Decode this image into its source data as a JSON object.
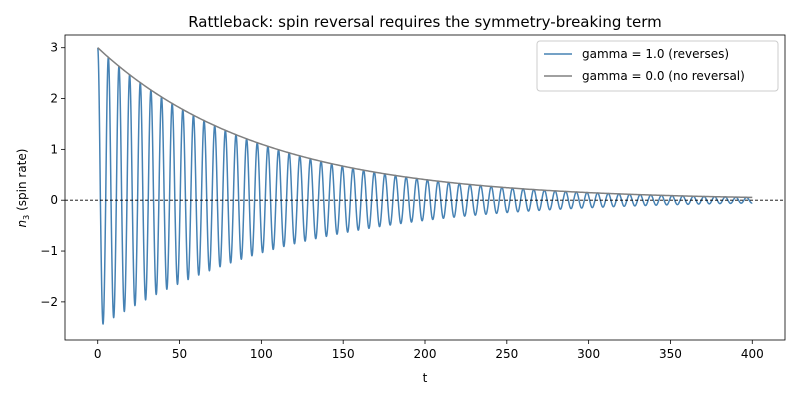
{
  "chart_data": {
    "type": "line",
    "title": "Rattleback: spin reversal requires the symmetry-breaking term",
    "xlabel": "t",
    "ylabel_main": "n",
    "ylabel_sub": "3",
    "ylabel_rest": " (spin rate)",
    "xlim": [
      -20,
      420
    ],
    "ylim": [
      -2.75,
      3.25
    ],
    "x_ticks": [
      0,
      50,
      100,
      150,
      200,
      250,
      300,
      350,
      400
    ],
    "x_tick_labels": [
      "0",
      "50",
      "100",
      "150",
      "200",
      "250",
      "300",
      "350",
      "400"
    ],
    "y_ticks": [
      -2,
      -1,
      0,
      1,
      2,
      3
    ],
    "y_tick_labels": [
      "−2",
      "−1",
      "0",
      "1",
      "2",
      "3"
    ],
    "grid": false,
    "legend_position": "top-right",
    "reference_line": {
      "y": 0,
      "style": "dashed",
      "color": "#000000"
    },
    "x_range": [
      0,
      400
    ],
    "series": [
      {
        "name": "gamma = 1.0 (reverses)",
        "color": "#4682b4",
        "kind": "damped oscillation",
        "initial_value": 3.0,
        "first_minimum": -2.5,
        "approx_period": 6.5,
        "decay_constant": 100,
        "final_value": 0.0
      },
      {
        "name": "gamma = 0.0 (no reversal)",
        "color": "#808080",
        "kind": "exponential decay",
        "initial_value": 3.0,
        "decay_constant": 100,
        "final_value": 0.055
      }
    ]
  }
}
